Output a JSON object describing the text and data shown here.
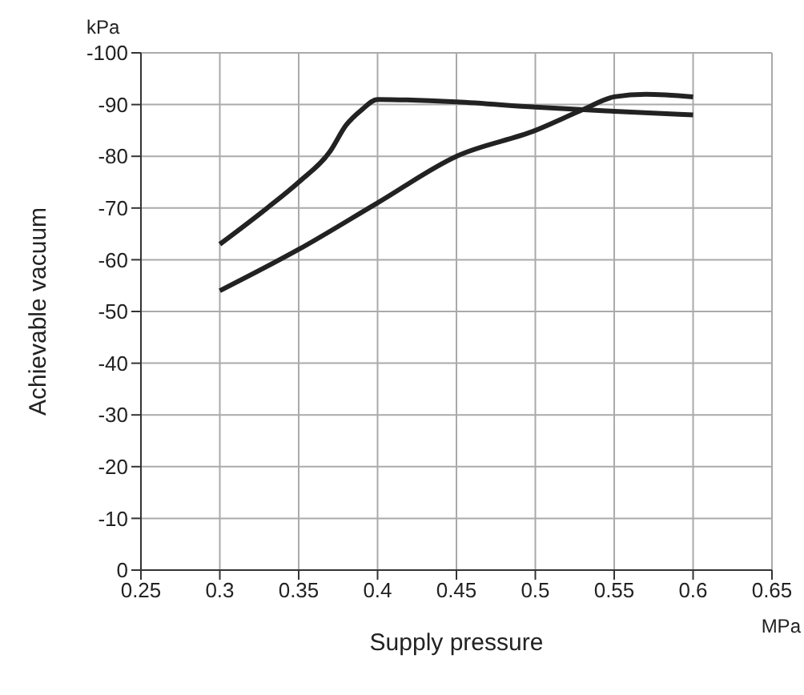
{
  "chart_data": {
    "type": "line",
    "xlabel": "Supply pressure",
    "ylabel": "Achievable vacuum",
    "annotations": [
      "kPa",
      "MPa"
    ],
    "xlim": [
      0.25,
      0.65
    ],
    "xticks": [
      0.25,
      0.3,
      0.35,
      0.4,
      0.45,
      0.5,
      0.55,
      0.6,
      0.65
    ],
    "ylim": [
      0,
      -100
    ],
    "yticks": [
      0,
      -10,
      -20,
      -30,
      -40,
      -50,
      -60,
      -70,
      -80,
      -90,
      -100
    ],
    "grid": true,
    "marker": "none",
    "line_style": "solid",
    "series": [
      {
        "color": "#222222",
        "x": [
          0.3,
          0.33,
          0.35,
          0.37,
          0.38,
          0.39,
          0.4,
          0.45,
          0.5,
          0.55,
          0.6
        ],
        "values": [
          -63,
          -70,
          -75,
          -81,
          -86,
          -89,
          -91,
          -90.5,
          -89.5,
          -88.7,
          -88
        ]
      },
      {
        "color": "#222222",
        "x": [
          0.3,
          0.35,
          0.4,
          0.45,
          0.5,
          0.53,
          0.55,
          0.57,
          0.6
        ],
        "values": [
          -54,
          -62,
          -71,
          -80,
          -85,
          -89,
          -91.5,
          -92,
          -91.5
        ]
      }
    ]
  }
}
